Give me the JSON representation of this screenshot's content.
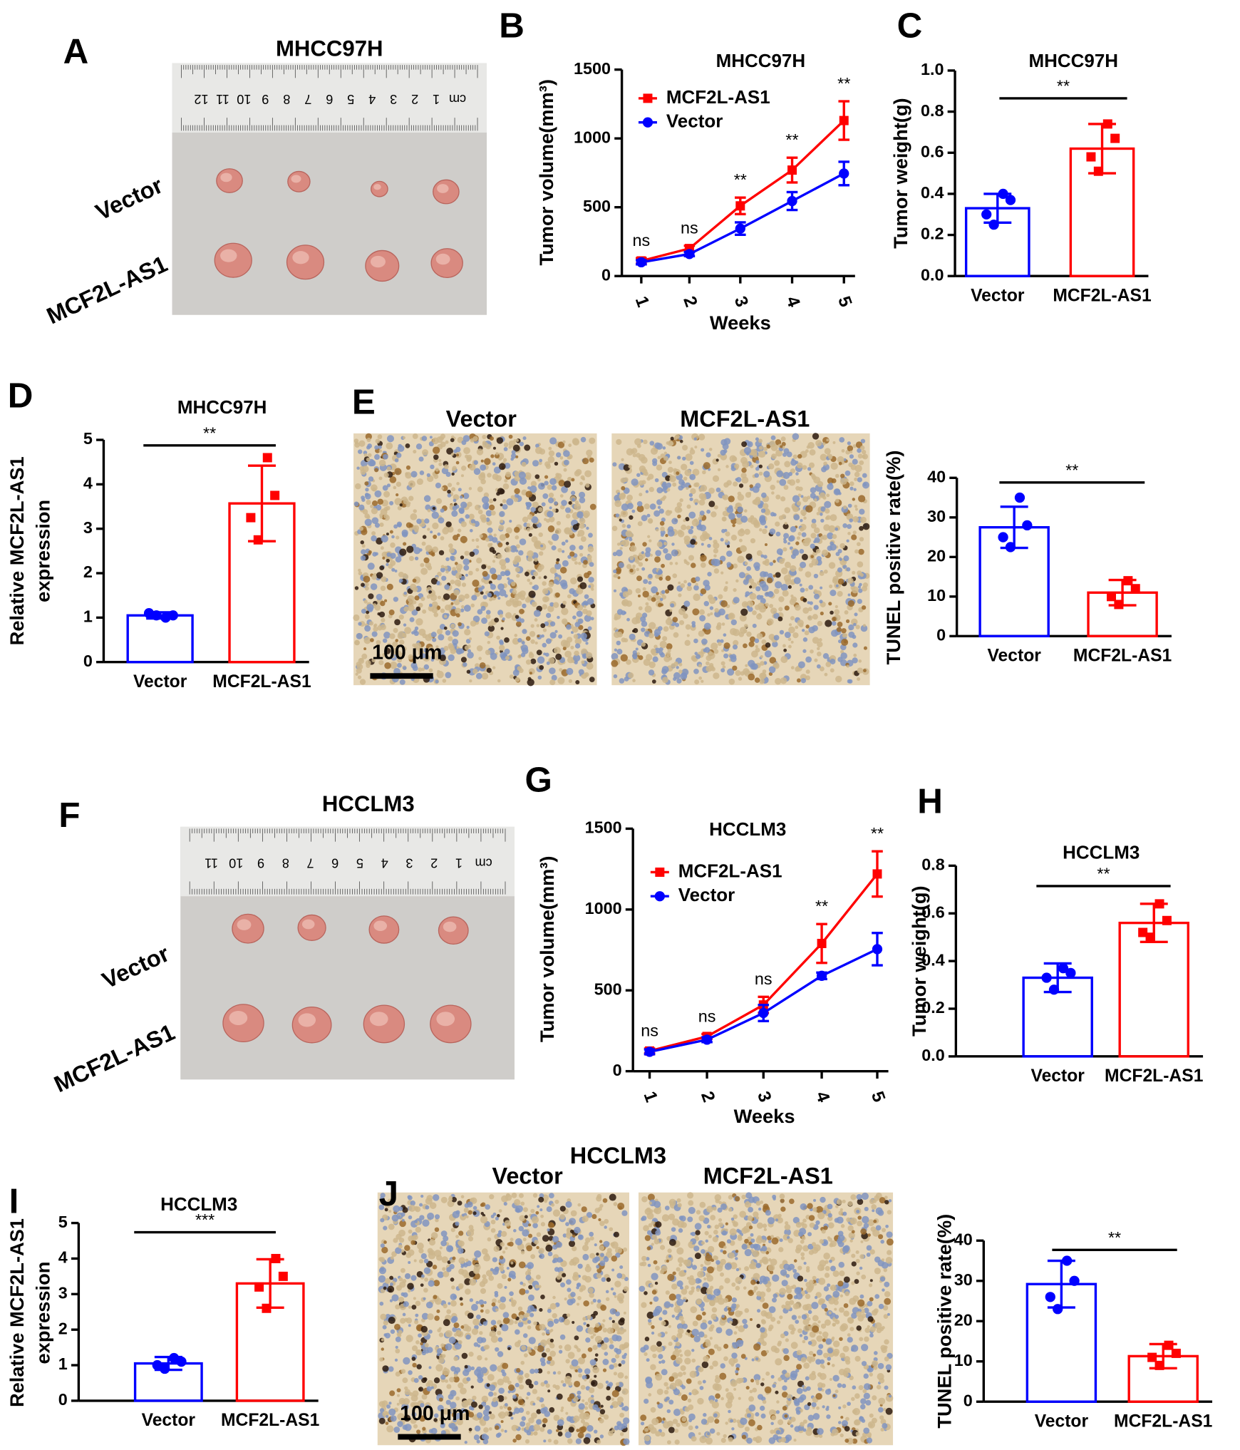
{
  "panel_labels": [
    "A",
    "B",
    "C",
    "D",
    "E",
    "F",
    "G",
    "H",
    "I",
    "J"
  ],
  "photos": [
    {
      "title": "MHCC97H",
      "row_labels": [
        "Vector",
        "MCF2L-AS1"
      ],
      "ruler": [
        "12",
        "11",
        "10",
        "9",
        "8",
        "7",
        "6",
        "5",
        "4",
        "3",
        "2",
        "1",
        "cm"
      ]
    },
    {
      "col_labels": [
        "Vector",
        "MCF2L-AS1"
      ],
      "scale_bar": "100 μm"
    },
    {
      "title": "HCCLM3",
      "row_labels": [
        "Vector",
        "MCF2L-AS1"
      ],
      "ruler": [
        "11",
        "10",
        "9",
        "8",
        "7",
        "6",
        "5",
        "4",
        "3",
        "2",
        "1",
        "cm"
      ]
    },
    {
      "title": "HCCLM3",
      "col_labels": [
        "Vector",
        "MCF2L-AS1"
      ],
      "scale_bar": "100 μm"
    }
  ],
  "chart_data": [
    {
      "type": "line",
      "title": "MHCC97H",
      "xlabel": "Weeks",
      "ylabel": "Tumor volume(mm³)",
      "categories": [
        "1",
        "2",
        "3",
        "4",
        "5"
      ],
      "series": [
        {
          "name": "MCF2L-AS1",
          "color": "#ff0000",
          "marker": "square",
          "values": [
            110,
            200,
            510,
            770,
            1130
          ],
          "errors": [
            20,
            20,
            60,
            90,
            140
          ]
        },
        {
          "name": "Vector",
          "color": "#0000ff",
          "marker": "circle",
          "values": [
            100,
            160,
            345,
            545,
            745
          ],
          "errors": [
            15,
            15,
            45,
            65,
            85
          ]
        }
      ],
      "annotations": [
        "ns",
        "ns",
        "**",
        "**",
        "**"
      ],
      "ylim": [
        0,
        1500
      ],
      "yticks": [
        0,
        500,
        1000,
        1500
      ]
    },
    {
      "type": "bar",
      "title": "MHCC97H",
      "ylabel": "Tumor weight(g)",
      "categories": [
        "Vector",
        "MCF2L-AS1"
      ],
      "values": [
        0.33,
        0.62
      ],
      "errors": [
        0.07,
        0.12
      ],
      "points": [
        [
          0.4,
          0.37,
          0.3,
          0.25
        ],
        [
          0.74,
          0.67,
          0.58,
          0.51
        ]
      ],
      "colors": [
        "#0000ff",
        "#ff0000"
      ],
      "significance": "**",
      "ylim": [
        0,
        1.0
      ],
      "yticks": [
        {
          "value": 0,
          "label": "0.0"
        },
        0.2,
        0.4,
        0.6,
        0.8,
        {
          "value": 1.0,
          "label": "1.0"
        }
      ]
    },
    {
      "type": "bar",
      "title": "MHCC97H",
      "ylabel": [
        "Relative MCF2L-AS1",
        "expression"
      ],
      "categories": [
        "Vector",
        "MCF2L-AS1"
      ],
      "values": [
        1.05,
        3.57
      ],
      "errors": [
        0.07,
        0.85
      ],
      "points": [
        [
          1.0,
          1.05,
          1.1,
          1.05
        ],
        [
          4.6,
          3.75,
          3.25,
          2.75
        ]
      ],
      "colors": [
        "#0000ff",
        "#ff0000"
      ],
      "significance": "**",
      "ylim": [
        0,
        5
      ],
      "yticks": [
        0,
        1,
        2,
        3,
        4,
        5
      ]
    },
    {
      "type": "bar",
      "ylabel": "TUNEL positive rate(%)",
      "categories": [
        "Vector",
        "MCF2L-AS1"
      ],
      "values": [
        27.5,
        11
      ],
      "errors": [
        5.2,
        3.2
      ],
      "points": [
        [
          35,
          28,
          25,
          22.5
        ],
        [
          14,
          12,
          10,
          8
        ]
      ],
      "colors": [
        "#0000ff",
        "#ff0000"
      ],
      "significance": "**",
      "ylim": [
        0,
        40
      ],
      "yticks": [
        0,
        10,
        20,
        30,
        40
      ]
    },
    {
      "type": "line",
      "title": "HCCLM3",
      "xlabel": "Weeks",
      "ylabel": "Tumor volume(mm³)",
      "categories": [
        "1",
        "2",
        "3",
        "4",
        "5"
      ],
      "series": [
        {
          "name": "MCF2L-AS1",
          "color": "#ff0000",
          "marker": "square",
          "values": [
            125,
            215,
            410,
            790,
            1220
          ],
          "errors": [
            15,
            15,
            50,
            120,
            140
          ]
        },
        {
          "name": "Vector",
          "color": "#0000ff",
          "marker": "circle",
          "values": [
            120,
            195,
            360,
            590,
            755
          ],
          "errors": [
            15,
            15,
            50,
            20,
            100
          ]
        }
      ],
      "annotations": [
        "ns",
        "ns",
        "ns",
        "**",
        "**"
      ],
      "ylim": [
        0,
        1500
      ],
      "yticks": [
        0,
        500,
        1000,
        1500
      ]
    },
    {
      "type": "bar",
      "title": "HCCLM3",
      "ylabel": "Tumor weight(g)",
      "categories": [
        "Vector",
        "MCF2L-AS1"
      ],
      "values": [
        0.33,
        0.56
      ],
      "errors": [
        0.06,
        0.08
      ],
      "points": [
        [
          0.37,
          0.35,
          0.33,
          0.28
        ],
        [
          0.64,
          0.57,
          0.52,
          0.5
        ]
      ],
      "colors": [
        "#0000ff",
        "#ff0000"
      ],
      "significance": "**",
      "ylim": [
        0,
        0.8
      ],
      "yticks": [
        {
          "value": 0,
          "label": "0.0"
        },
        0.2,
        0.4,
        0.6,
        0.8
      ]
    },
    {
      "type": "bar",
      "title": "HCCLM3",
      "ylabel": [
        "Relative MCF2L-AS1",
        "expression"
      ],
      "categories": [
        "Vector",
        "MCF2L-AS1"
      ],
      "values": [
        1.05,
        3.3
      ],
      "errors": [
        0.18,
        0.68
      ],
      "points": [
        [
          1.2,
          1.1,
          1.0,
          0.9
        ],
        [
          4.0,
          3.5,
          3.2,
          2.6
        ]
      ],
      "colors": [
        "#0000ff",
        "#ff0000"
      ],
      "significance": "***",
      "ylim": [
        0,
        5
      ],
      "yticks": [
        0,
        1,
        2,
        3,
        4,
        5
      ]
    },
    {
      "type": "bar",
      "ylabel": "TUNEL positive rate(%)",
      "categories": [
        "Vector",
        "MCF2L-AS1"
      ],
      "values": [
        29.2,
        11.3
      ],
      "errors": [
        5.8,
        3
      ],
      "points": [
        [
          35,
          30,
          26,
          23
        ],
        [
          14,
          12,
          11,
          9
        ]
      ],
      "colors": [
        "#0000ff",
        "#ff0000"
      ],
      "significance": "**",
      "ylim": [
        0,
        40
      ],
      "yticks": [
        0,
        10,
        20,
        30,
        40
      ]
    }
  ]
}
